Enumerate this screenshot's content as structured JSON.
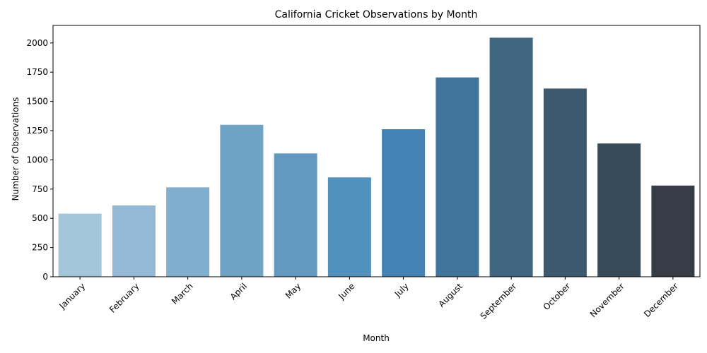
{
  "chart_data": {
    "type": "bar",
    "title": "California Cricket Observations by Month",
    "xlabel": "Month",
    "ylabel": "Number of Observations",
    "categories": [
      "January",
      "February",
      "March",
      "April",
      "May",
      "June",
      "July",
      "August",
      "September",
      "October",
      "November",
      "December"
    ],
    "values": [
      540,
      610,
      765,
      1300,
      1055,
      850,
      1262,
      1705,
      2045,
      1610,
      1140,
      780
    ],
    "colors": [
      "#a2c5da",
      "#93b9d6",
      "#80aecf",
      "#6fa3c6",
      "#6199c0",
      "#5290bd",
      "#4583b4",
      "#40749b",
      "#416682",
      "#3d596f",
      "#374b5b",
      "#363d46"
    ],
    "ylim": [
      0,
      2150
    ],
    "yticks": [
      0,
      250,
      500,
      750,
      1000,
      1250,
      1500,
      1750,
      2000
    ],
    "grid": false,
    "legend": "none"
  }
}
